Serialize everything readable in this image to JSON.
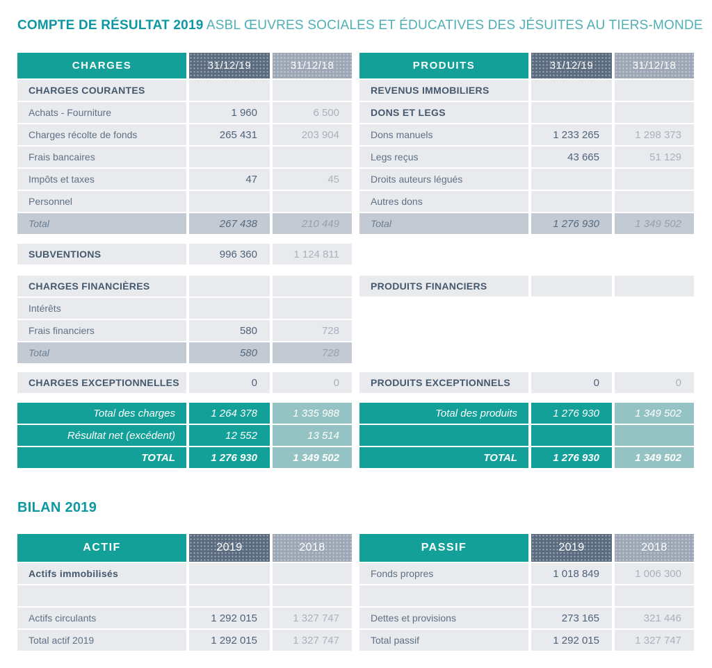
{
  "title": {
    "bold": "COMPTE DE RÉSULTAT 2019",
    "regular": "ASBL ŒUVRES SOCIALES ET ÉDUCATIVES DES JÉSUITES AU TIERS-MONDE"
  },
  "colors": {
    "teal": "#12a099",
    "teal_light": "#95c3c3",
    "slate_header": "#5a6b7f",
    "gray_header": "#9ca6b5",
    "row_bg": "#e9eaed",
    "total_row_bg": "#c3cad3",
    "title_teal_bold": "#0d98a1",
    "title_teal_light": "#4fafb4"
  },
  "charges": {
    "header": {
      "title": "CHARGES",
      "col19": "31/12/19",
      "col18": "31/12/18"
    },
    "courantes": {
      "section": "CHARGES COURANTES",
      "rows": [
        {
          "label": "Achats - Fourniture",
          "v19": "1 960",
          "v18": "6 500"
        },
        {
          "label": "Charges récolte de fonds",
          "v19": "265 431",
          "v18": "203 904"
        },
        {
          "label": "Frais bancaires",
          "v19": "",
          "v18": ""
        },
        {
          "label": "Impôts et taxes",
          "v19": "47",
          "v18": "45"
        },
        {
          "label": "Personnel",
          "v19": "",
          "v18": ""
        }
      ],
      "total": {
        "label": "Total",
        "v19": "267 438",
        "v18": "210 449"
      }
    },
    "subventions": {
      "label": "SUBVENTIONS",
      "v19": "996 360",
      "v18": "1 124 811"
    },
    "financieres": {
      "section": "CHARGES FINANCIÈRES",
      "rows": [
        {
          "label": "Intérêts",
          "v19": "",
          "v18": ""
        },
        {
          "label": "Frais financiers",
          "v19": "580",
          "v18": "728"
        }
      ],
      "total": {
        "label": "Total",
        "v19": "580",
        "v18": "728"
      }
    },
    "exceptionnelles": {
      "label": "CHARGES EXCEPTIONNELLES",
      "v19": "0",
      "v18": "0"
    },
    "totals": [
      {
        "label": "Total des charges",
        "v19": "1 264 378",
        "v18": "1 335 988"
      },
      {
        "label": "Résultat net (excédent)",
        "v19": "12 552",
        "v18": "13 514"
      },
      {
        "label": "TOTAL",
        "v19": "1 276 930",
        "v18": "1 349 502"
      }
    ]
  },
  "produits": {
    "header": {
      "title": "PRODUITS",
      "col19": "31/12/19",
      "col18": "31/12/18"
    },
    "section1": "REVENUS IMMOBILIERS",
    "section2": "DONS ET LEGS",
    "rows": [
      {
        "label": "Dons manuels",
        "v19": "1 233 265",
        "v18": "1 298 373"
      },
      {
        "label": "Legs reçus",
        "v19": "43 665",
        "v18": "51 129"
      },
      {
        "label": "Droits auteurs légués",
        "v19": "",
        "v18": ""
      },
      {
        "label": "Autres dons",
        "v19": "",
        "v18": ""
      }
    ],
    "total": {
      "label": "Total",
      "v19": "1 276 930",
      "v18": "1 349 502"
    },
    "financiers": {
      "label": "PRODUITS FINANCIERS",
      "v19": "",
      "v18": ""
    },
    "exceptionnels": {
      "label": "PRODUITS EXCEPTIONNELS",
      "v19": "0",
      "v18": "0"
    },
    "totals": [
      {
        "label": "Total des produits",
        "v19": "1 276 930",
        "v18": "1 349 502"
      },
      {
        "label": "",
        "v19": "",
        "v18": ""
      },
      {
        "label": "TOTAL",
        "v19": "1 276 930",
        "v18": "1 349 502"
      }
    ]
  },
  "bilan": {
    "title": "BILAN 2019",
    "actif": {
      "header": {
        "title": "ACTIF",
        "col19": "2019",
        "col18": "2018"
      },
      "rows": [
        {
          "label": "Actifs immobilisés",
          "v19": "",
          "v18": ""
        },
        {
          "label": "",
          "v19": "",
          "v18": ""
        },
        {
          "label": "Actifs circulants",
          "v19": "1 292 015",
          "v18": "1 327 747"
        },
        {
          "label": "Total actif 2019",
          "v19": "1 292 015",
          "v18": "1 327 747"
        }
      ]
    },
    "passif": {
      "header": {
        "title": "PASSIF",
        "col19": "2019",
        "col18": "2018"
      },
      "rows": [
        {
          "label": "Fonds propres",
          "v19": "1 018 849",
          "v18": "1 006 300"
        },
        {
          "label": "",
          "v19": "",
          "v18": ""
        },
        {
          "label": "Dettes et provisions",
          "v19": "273 165",
          "v18": "321 446"
        },
        {
          "label": "Total passif",
          "v19": "1 292 015",
          "v18": "1 327 747"
        }
      ]
    }
  }
}
